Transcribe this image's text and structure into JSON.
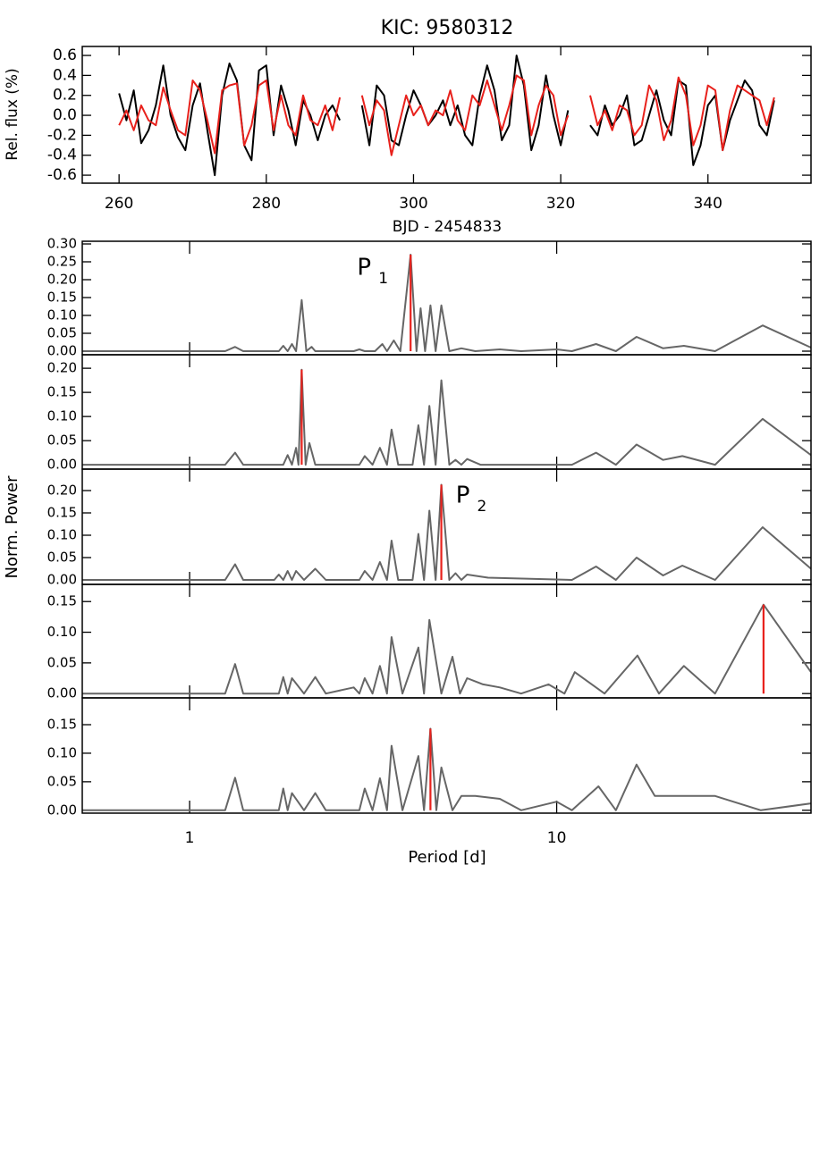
{
  "chart_data": [
    {
      "type": "line",
      "title": "KIC: 9580312",
      "xlabel": "BJD - 2454833",
      "ylabel": "Rel. flux (%)",
      "xlim": [
        255,
        354
      ],
      "xticks": [
        260,
        280,
        300,
        320,
        340
      ],
      "ylim": [
        -0.68,
        0.69
      ],
      "yticks": [
        -0.6,
        -0.4,
        -0.2,
        {
          "value": 0,
          "label": "0.0"
        },
        0.2,
        0.4,
        0.6
      ],
      "x": [
        260,
        261,
        262,
        263,
        264,
        265,
        266,
        267,
        268,
        269,
        270,
        271,
        272,
        273,
        274,
        275,
        276,
        277,
        278,
        279,
        280,
        281,
        282,
        283,
        284,
        285,
        286,
        287,
        288,
        289,
        290,
        291,
        292,
        293,
        294,
        295,
        296,
        297,
        298,
        299,
        300,
        301,
        302,
        303,
        304,
        305,
        306,
        307,
        308,
        309,
        310,
        311,
        312,
        313,
        314,
        315,
        316,
        317,
        318,
        319,
        320,
        321,
        322,
        323,
        324,
        325,
        326,
        327,
        328,
        329,
        330,
        331,
        332,
        333,
        334,
        335,
        336,
        337,
        338,
        339,
        340,
        341,
        342,
        343,
        344,
        345,
        346,
        347,
        348,
        349
      ],
      "series": [
        {
          "color": "#000000",
          "values": [
            0.22,
            -0.05,
            0.25,
            -0.28,
            -0.15,
            0.1,
            0.5,
            0.0,
            -0.22,
            -0.35,
            0.1,
            0.32,
            -0.15,
            -0.6,
            0.2,
            0.52,
            0.35,
            -0.3,
            -0.45,
            0.45,
            0.5,
            -0.2,
            0.3,
            0.05,
            -0.3,
            0.15,
            0.0,
            -0.25,
            0.0,
            0.1,
            -0.05,
            null,
            null,
            0.1,
            -0.3,
            0.3,
            0.2,
            -0.25,
            -0.3,
            0.0,
            0.25,
            0.1,
            -0.1,
            0.0,
            0.15,
            -0.1,
            0.1,
            -0.2,
            -0.3,
            0.2,
            0.5,
            0.25,
            -0.25,
            -0.1,
            0.6,
            0.3,
            -0.35,
            -0.1,
            0.4,
            0.0,
            -0.3,
            0.05,
            null,
            null,
            -0.1,
            -0.2,
            0.1,
            -0.1,
            0.0,
            0.2,
            -0.3,
            -0.25,
            0.0,
            0.25,
            -0.05,
            -0.2,
            0.35,
            0.3,
            -0.5,
            -0.3,
            0.1,
            0.2,
            -0.35,
            -0.05,
            0.15,
            0.35,
            0.25,
            -0.1,
            -0.2,
            0.15
          ]
        },
        {
          "color": "#e8211c",
          "values": [
            -0.1,
            0.05,
            -0.15,
            0.1,
            -0.05,
            -0.1,
            0.28,
            0.05,
            -0.15,
            -0.2,
            0.35,
            0.25,
            -0.05,
            -0.38,
            0.25,
            0.3,
            0.32,
            -0.3,
            -0.1,
            0.3,
            0.35,
            -0.15,
            0.2,
            -0.1,
            -0.2,
            0.2,
            -0.05,
            -0.1,
            0.1,
            -0.15,
            0.18,
            null,
            null,
            0.2,
            -0.1,
            0.15,
            0.05,
            -0.4,
            -0.1,
            0.2,
            0.0,
            0.1,
            -0.1,
            0.05,
            0.0,
            0.25,
            -0.05,
            -0.15,
            0.2,
            0.1,
            0.35,
            0.1,
            -0.15,
            0.1,
            0.4,
            0.35,
            -0.2,
            0.1,
            0.3,
            0.2,
            -0.2,
            0.0,
            null,
            null,
            0.2,
            -0.1,
            0.05,
            -0.15,
            0.1,
            0.05,
            -0.2,
            -0.1,
            0.3,
            0.15,
            -0.25,
            -0.05,
            0.38,
            0.2,
            -0.3,
            -0.1,
            0.3,
            0.25,
            -0.35,
            0.05,
            0.3,
            0.25,
            0.2,
            0.15,
            -0.1,
            0.18
          ]
        }
      ]
    },
    {
      "type": "periodogram",
      "xlabel": "Period [d]",
      "ylabel": "Norm. Power",
      "xscale": "log",
      "xlim": [
        0.51,
        49.3
      ],
      "xticks": [
        1,
        10
      ],
      "color": "#666666",
      "peak_color": "#e8211c",
      "panels": [
        {
          "ylim": [
            -0.01,
            0.3075
          ],
          "yticks": [
            {
              "value": 0,
              "label": "0.00"
            },
            0.05,
            {
              "value": 0.1,
              "label": "0.10"
            },
            0.15,
            {
              "value": 0.2,
              "label": "0.20"
            },
            0.25,
            {
              "value": 0.3,
              "label": "0.30"
            }
          ],
          "x": [
            0.51,
            1.25,
            1.33,
            1.4,
            1.75,
            1.8,
            1.85,
            1.9,
            1.95,
            2.02,
            2.08,
            2.15,
            2.2,
            2.8,
            2.9,
            3.0,
            3.2,
            3.35,
            3.45,
            3.6,
            3.75,
            4.0,
            4.15,
            4.26,
            4.38,
            4.53,
            4.68,
            4.85,
            5.1,
            5.5,
            6,
            7,
            8,
            10,
            11,
            12.8,
            14.5,
            16.5,
            19.5,
            22.2,
            27,
            36.4,
            49.3
          ],
          "values": [
            0,
            0,
            0.012,
            0,
            0,
            0.015,
            0,
            0.02,
            0,
            0.143,
            0,
            0.012,
            0,
            0,
            0.005,
            0,
            0,
            0.02,
            0,
            0.03,
            0,
            0.27,
            0,
            0.12,
            0,
            0.128,
            0,
            0.128,
            0,
            0.008,
            0,
            0.005,
            0,
            0.005,
            0,
            0.02,
            0,
            0.04,
            0.008,
            0.015,
            0,
            0.072,
            0.01
          ],
          "peak": {
            "x": 4.0,
            "value": 0.27
          },
          "annotation": {
            "text": "P",
            "subscript": "1"
          }
        },
        {
          "ylim": [
            -0.009,
            0.228
          ],
          "yticks": [
            {
              "value": 0,
              "label": "0.00"
            },
            0.05,
            {
              "value": 0.1,
              "label": "0.10"
            },
            0.15,
            {
              "value": 0.2,
              "label": "0.20"
            }
          ],
          "x": [
            0.51,
            1.25,
            1.33,
            1.4,
            1.8,
            1.85,
            1.9,
            1.95,
            1.98,
            2.02,
            2.07,
            2.12,
            2.2,
            2.9,
            3.0,
            3.15,
            3.3,
            3.45,
            3.55,
            3.7,
            4.05,
            4.2,
            4.35,
            4.5,
            4.68,
            4.85,
            5.1,
            5.3,
            5.5,
            5.7,
            6.2,
            11,
            12.8,
            14.5,
            16.5,
            19.5,
            22,
            27,
            36.4,
            49.3
          ],
          "values": [
            0,
            0,
            0.025,
            0,
            0,
            0.02,
            0,
            0.035,
            0,
            0.197,
            0,
            0.045,
            0,
            0,
            0.018,
            0,
            0.035,
            0,
            0.073,
            0,
            0,
            0.082,
            0,
            0.122,
            0,
            0.175,
            0,
            0.01,
            0,
            0.012,
            0,
            0,
            0.025,
            0,
            0.042,
            0.01,
            0.018,
            0,
            0.095,
            0.02
          ],
          "peak": {
            "x": 2.02,
            "value": 0.197
          }
        },
        {
          "ylim": [
            -0.01,
            0.248
          ],
          "yticks": [
            {
              "value": 0,
              "label": "0.00"
            },
            0.05,
            {
              "value": 0.1,
              "label": "0.10"
            },
            0.15,
            {
              "value": 0.2,
              "label": "0.20"
            }
          ],
          "x": [
            0.51,
            1.25,
            1.33,
            1.4,
            1.7,
            1.75,
            1.8,
            1.85,
            1.9,
            1.95,
            2.05,
            2.2,
            2.35,
            2.9,
            3.0,
            3.15,
            3.3,
            3.45,
            3.55,
            3.7,
            4.05,
            4.2,
            4.35,
            4.5,
            4.68,
            4.85,
            5.1,
            5.3,
            5.5,
            5.7,
            6.5,
            11,
            12.8,
            14.5,
            16.5,
            19.5,
            22,
            27,
            36.4,
            49.3
          ],
          "values": [
            0,
            0,
            0.035,
            0,
            0,
            0.012,
            0,
            0.02,
            0,
            0.02,
            0,
            0.025,
            0,
            0,
            0.02,
            0,
            0.04,
            0,
            0.088,
            0,
            0,
            0.103,
            0,
            0.155,
            0,
            0.213,
            0,
            0.015,
            0,
            0.012,
            0.005,
            0,
            0.03,
            0,
            0.05,
            0.01,
            0.032,
            0,
            0.118,
            0.025
          ],
          "peak": {
            "x": 4.85,
            "value": 0.213
          },
          "annotation": {
            "text": "P",
            "subscript": "2"
          }
        },
        {
          "ylim": [
            -0.007,
            0.178
          ],
          "yticks": [
            {
              "value": 0,
              "label": "0.00"
            },
            0.05,
            {
              "value": 0.1,
              "label": "0.10"
            },
            0.15
          ],
          "x": [
            0.51,
            1.25,
            1.33,
            1.4,
            1.75,
            1.8,
            1.85,
            1.9,
            2.05,
            2.2,
            2.35,
            2.8,
            2.9,
            3.0,
            3.15,
            3.3,
            3.45,
            3.55,
            3.8,
            4.2,
            4.35,
            4.5,
            4.85,
            5.2,
            5.45,
            5.7,
            6.3,
            7,
            8,
            9.5,
            10.5,
            11.2,
            13.5,
            16.6,
            19,
            22.2,
            27,
            36.6,
            49.3
          ],
          "values": [
            0,
            0,
            0.048,
            0,
            0,
            0.027,
            0,
            0.025,
            0,
            0.027,
            0,
            0.01,
            0,
            0.025,
            0,
            0.045,
            0,
            0.092,
            0,
            0.075,
            0,
            0.12,
            0,
            0.06,
            0,
            0.025,
            0.015,
            0.01,
            0,
            0.015,
            0,
            0.035,
            0,
            0.062,
            0,
            0.045,
            0,
            0.145,
            0.035
          ],
          "peak": {
            "x": 36.6,
            "value": 0.145
          }
        },
        {
          "ylim": [
            -0.005,
            0.197
          ],
          "yticks": [
            {
              "value": 0,
              "label": "0.00"
            },
            0.05,
            {
              "value": 0.1,
              "label": "0.10"
            },
            0.15
          ],
          "x": [
            0.51,
            1.25,
            1.33,
            1.4,
            1.75,
            1.8,
            1.85,
            1.9,
            2.05,
            2.2,
            2.35,
            2.9,
            3.0,
            3.15,
            3.3,
            3.45,
            3.55,
            3.8,
            4.2,
            4.35,
            4.53,
            4.7,
            4.85,
            5.2,
            5.5,
            6,
            7,
            8,
            10,
            11,
            13,
            14.5,
            16.5,
            18.5,
            20,
            27,
            36,
            49.3
          ],
          "values": [
            0,
            0,
            0.057,
            0,
            0,
            0.038,
            0,
            0.03,
            0,
            0.03,
            0,
            0,
            0.038,
            0,
            0.056,
            0,
            0.113,
            0,
            0.095,
            0,
            0.143,
            0,
            0.075,
            0,
            0.025,
            0.025,
            0.02,
            0,
            0.015,
            0,
            0.042,
            0,
            0.08,
            0.025,
            0.025,
            0.025,
            0,
            0.012
          ],
          "peak": {
            "x": 4.53,
            "value": 0.143
          }
        }
      ]
    }
  ]
}
